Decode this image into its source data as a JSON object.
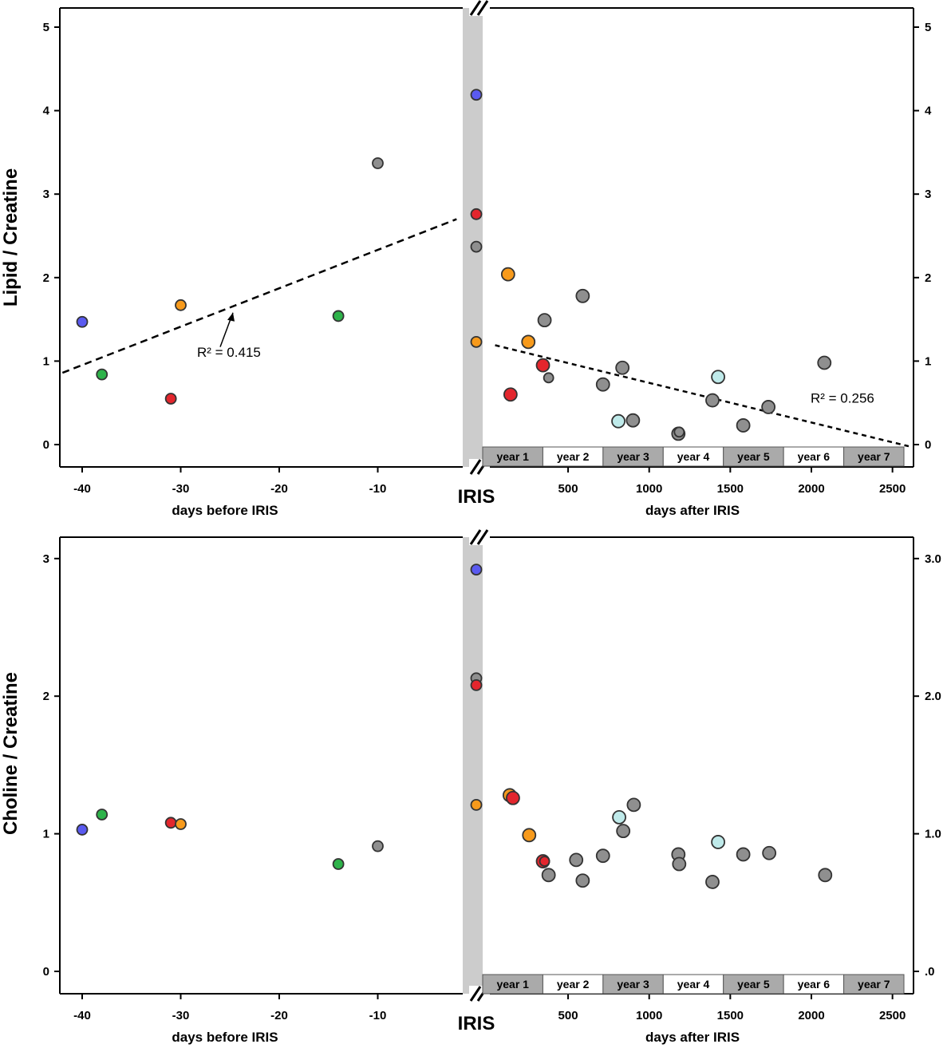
{
  "chart_data": [
    {
      "type": "scatter",
      "ylabel": "Lipid / Creatine",
      "ylim": [
        0,
        5
      ],
      "yticks": [
        0,
        1,
        2,
        3,
        4,
        5
      ],
      "yticks_right": [
        "0",
        "1",
        "2",
        "3",
        "4",
        "5"
      ],
      "left_xlabel": "days before IRIS",
      "left_xlim": [
        -42,
        -1
      ],
      "left_xticks": [
        -40,
        -30,
        -20,
        -10
      ],
      "right_xlabel": "days after IRIS",
      "right_xlim": [
        -50,
        2600
      ],
      "right_xticks": [
        500,
        1000,
        1500,
        2000,
        2500
      ],
      "break_label": "IRIS",
      "years": [
        "year 1",
        "year 2",
        "year 3",
        "year 4",
        "year 5",
        "year 6",
        "year 7"
      ],
      "before_points": [
        {
          "x": -40,
          "y": 1.47,
          "color": "blue"
        },
        {
          "x": -38,
          "y": 0.84,
          "color": "green"
        },
        {
          "x": -31,
          "y": 0.55,
          "color": "red"
        },
        {
          "x": -30,
          "y": 1.67,
          "color": "orange"
        },
        {
          "x": -14,
          "y": 1.54,
          "color": "green"
        },
        {
          "x": -10,
          "y": 3.37,
          "color": "gray"
        }
      ],
      "iris_points": [
        {
          "y": 4.19,
          "color": "blue"
        },
        {
          "y": 2.76,
          "color": "red"
        },
        {
          "y": 2.37,
          "color": "gray"
        },
        {
          "y": 1.23,
          "color": "orange"
        }
      ],
      "after_points": [
        {
          "x": 130,
          "y": 2.04,
          "color": "orange",
          "r": 8
        },
        {
          "x": 145,
          "y": 0.6,
          "color": "red",
          "r": 8
        },
        {
          "x": 255,
          "y": 1.23,
          "color": "orange",
          "r": 8
        },
        {
          "x": 345,
          "y": 0.95,
          "color": "red",
          "r": 8
        },
        {
          "x": 355,
          "y": 1.49,
          "color": "gray",
          "r": 8
        },
        {
          "x": 380,
          "y": 0.8,
          "color": "gray",
          "r": 6
        },
        {
          "x": 590,
          "y": 1.78,
          "color": "gray",
          "r": 8
        },
        {
          "x": 715,
          "y": 0.72,
          "color": "gray",
          "r": 8
        },
        {
          "x": 810,
          "y": 0.28,
          "color": "lightblue",
          "r": 8
        },
        {
          "x": 835,
          "y": 0.92,
          "color": "gray",
          "r": 8
        },
        {
          "x": 900,
          "y": 0.29,
          "color": "gray",
          "r": 8
        },
        {
          "x": 1180,
          "y": 0.13,
          "color": "gray",
          "r": 8
        },
        {
          "x": 1185,
          "y": 0.15,
          "color": "gray",
          "r": 6
        },
        {
          "x": 1390,
          "y": 0.53,
          "color": "gray",
          "r": 8
        },
        {
          "x": 1425,
          "y": 0.81,
          "color": "lightblue",
          "r": 8
        },
        {
          "x": 1580,
          "y": 0.23,
          "color": "gray",
          "r": 8
        },
        {
          "x": 1735,
          "y": 0.45,
          "color": "gray",
          "r": 8
        },
        {
          "x": 2080,
          "y": 0.98,
          "color": "gray",
          "r": 8
        }
      ],
      "left_trend": {
        "x": [
          -42,
          -2
        ],
        "y": [
          0.86,
          2.7
        ],
        "r2": "R² = 0.415"
      },
      "right_trend": {
        "x": [
          50,
          2600
        ],
        "y": [
          1.19,
          -0.02
        ],
        "r2": "R² = 0.256"
      }
    },
    {
      "type": "scatter",
      "ylabel": "Choline / Creatine",
      "ylim": [
        0,
        3
      ],
      "yticks": [
        0,
        1,
        2,
        3
      ],
      "yticks_right": [
        ".0",
        "1.0",
        "2.0",
        "3.0"
      ],
      "left_xlabel": "days before IRIS",
      "left_xlim": [
        -42,
        -1
      ],
      "left_xticks": [
        -40,
        -30,
        -20,
        -10
      ],
      "right_xlabel": "days after IRIS",
      "right_xlim": [
        -50,
        2600
      ],
      "right_xticks": [
        500,
        1000,
        1500,
        2000,
        2500
      ],
      "break_label": "IRIS",
      "years": [
        "year 1",
        "year 2",
        "year 3",
        "year 4",
        "year 5",
        "year 6",
        "year 7"
      ],
      "before_points": [
        {
          "x": -40,
          "y": 1.03,
          "color": "blue"
        },
        {
          "x": -38,
          "y": 1.14,
          "color": "green"
        },
        {
          "x": -31,
          "y": 1.08,
          "color": "red"
        },
        {
          "x": -30,
          "y": 1.07,
          "color": "orange"
        },
        {
          "x": -14,
          "y": 0.78,
          "color": "green"
        },
        {
          "x": -10,
          "y": 0.91,
          "color": "gray"
        }
      ],
      "iris_points": [
        {
          "y": 2.92,
          "color": "blue"
        },
        {
          "y": 2.13,
          "color": "gray"
        },
        {
          "y": 2.08,
          "color": "red"
        },
        {
          "y": 1.21,
          "color": "orange"
        }
      ],
      "after_points": [
        {
          "x": 140,
          "y": 1.28,
          "color": "orange",
          "r": 8
        },
        {
          "x": 160,
          "y": 1.26,
          "color": "red",
          "r": 8
        },
        {
          "x": 260,
          "y": 0.99,
          "color": "orange",
          "r": 8
        },
        {
          "x": 345,
          "y": 0.8,
          "color": "red",
          "r": 8
        },
        {
          "x": 355,
          "y": 0.8,
          "color": "red",
          "r": 6
        },
        {
          "x": 380,
          "y": 0.7,
          "color": "gray",
          "r": 8
        },
        {
          "x": 550,
          "y": 0.81,
          "color": "gray",
          "r": 8
        },
        {
          "x": 590,
          "y": 0.66,
          "color": "gray",
          "r": 8
        },
        {
          "x": 715,
          "y": 0.84,
          "color": "gray",
          "r": 8
        },
        {
          "x": 815,
          "y": 1.12,
          "color": "lightblue",
          "r": 8
        },
        {
          "x": 840,
          "y": 1.02,
          "color": "gray",
          "r": 8
        },
        {
          "x": 905,
          "y": 1.21,
          "color": "gray",
          "r": 8
        },
        {
          "x": 1180,
          "y": 0.85,
          "color": "gray",
          "r": 8
        },
        {
          "x": 1185,
          "y": 0.78,
          "color": "gray",
          "r": 8
        },
        {
          "x": 1390,
          "y": 0.65,
          "color": "gray",
          "r": 8
        },
        {
          "x": 1425,
          "y": 0.94,
          "color": "lightblue",
          "r": 8
        },
        {
          "x": 1580,
          "y": 0.85,
          "color": "gray",
          "r": 8
        },
        {
          "x": 1740,
          "y": 0.86,
          "color": "gray",
          "r": 8
        },
        {
          "x": 2085,
          "y": 0.7,
          "color": "gray",
          "r": 8
        }
      ]
    }
  ],
  "colors": {
    "blue": "#5a5af0",
    "green": "#2eb34a",
    "red": "#e3262d",
    "orange": "#f79a1b",
    "gray": "#8f8f8f",
    "lightblue": "#bfeaea",
    "break_band": "#cccccc",
    "year_shaded": "#aaaaaa"
  }
}
